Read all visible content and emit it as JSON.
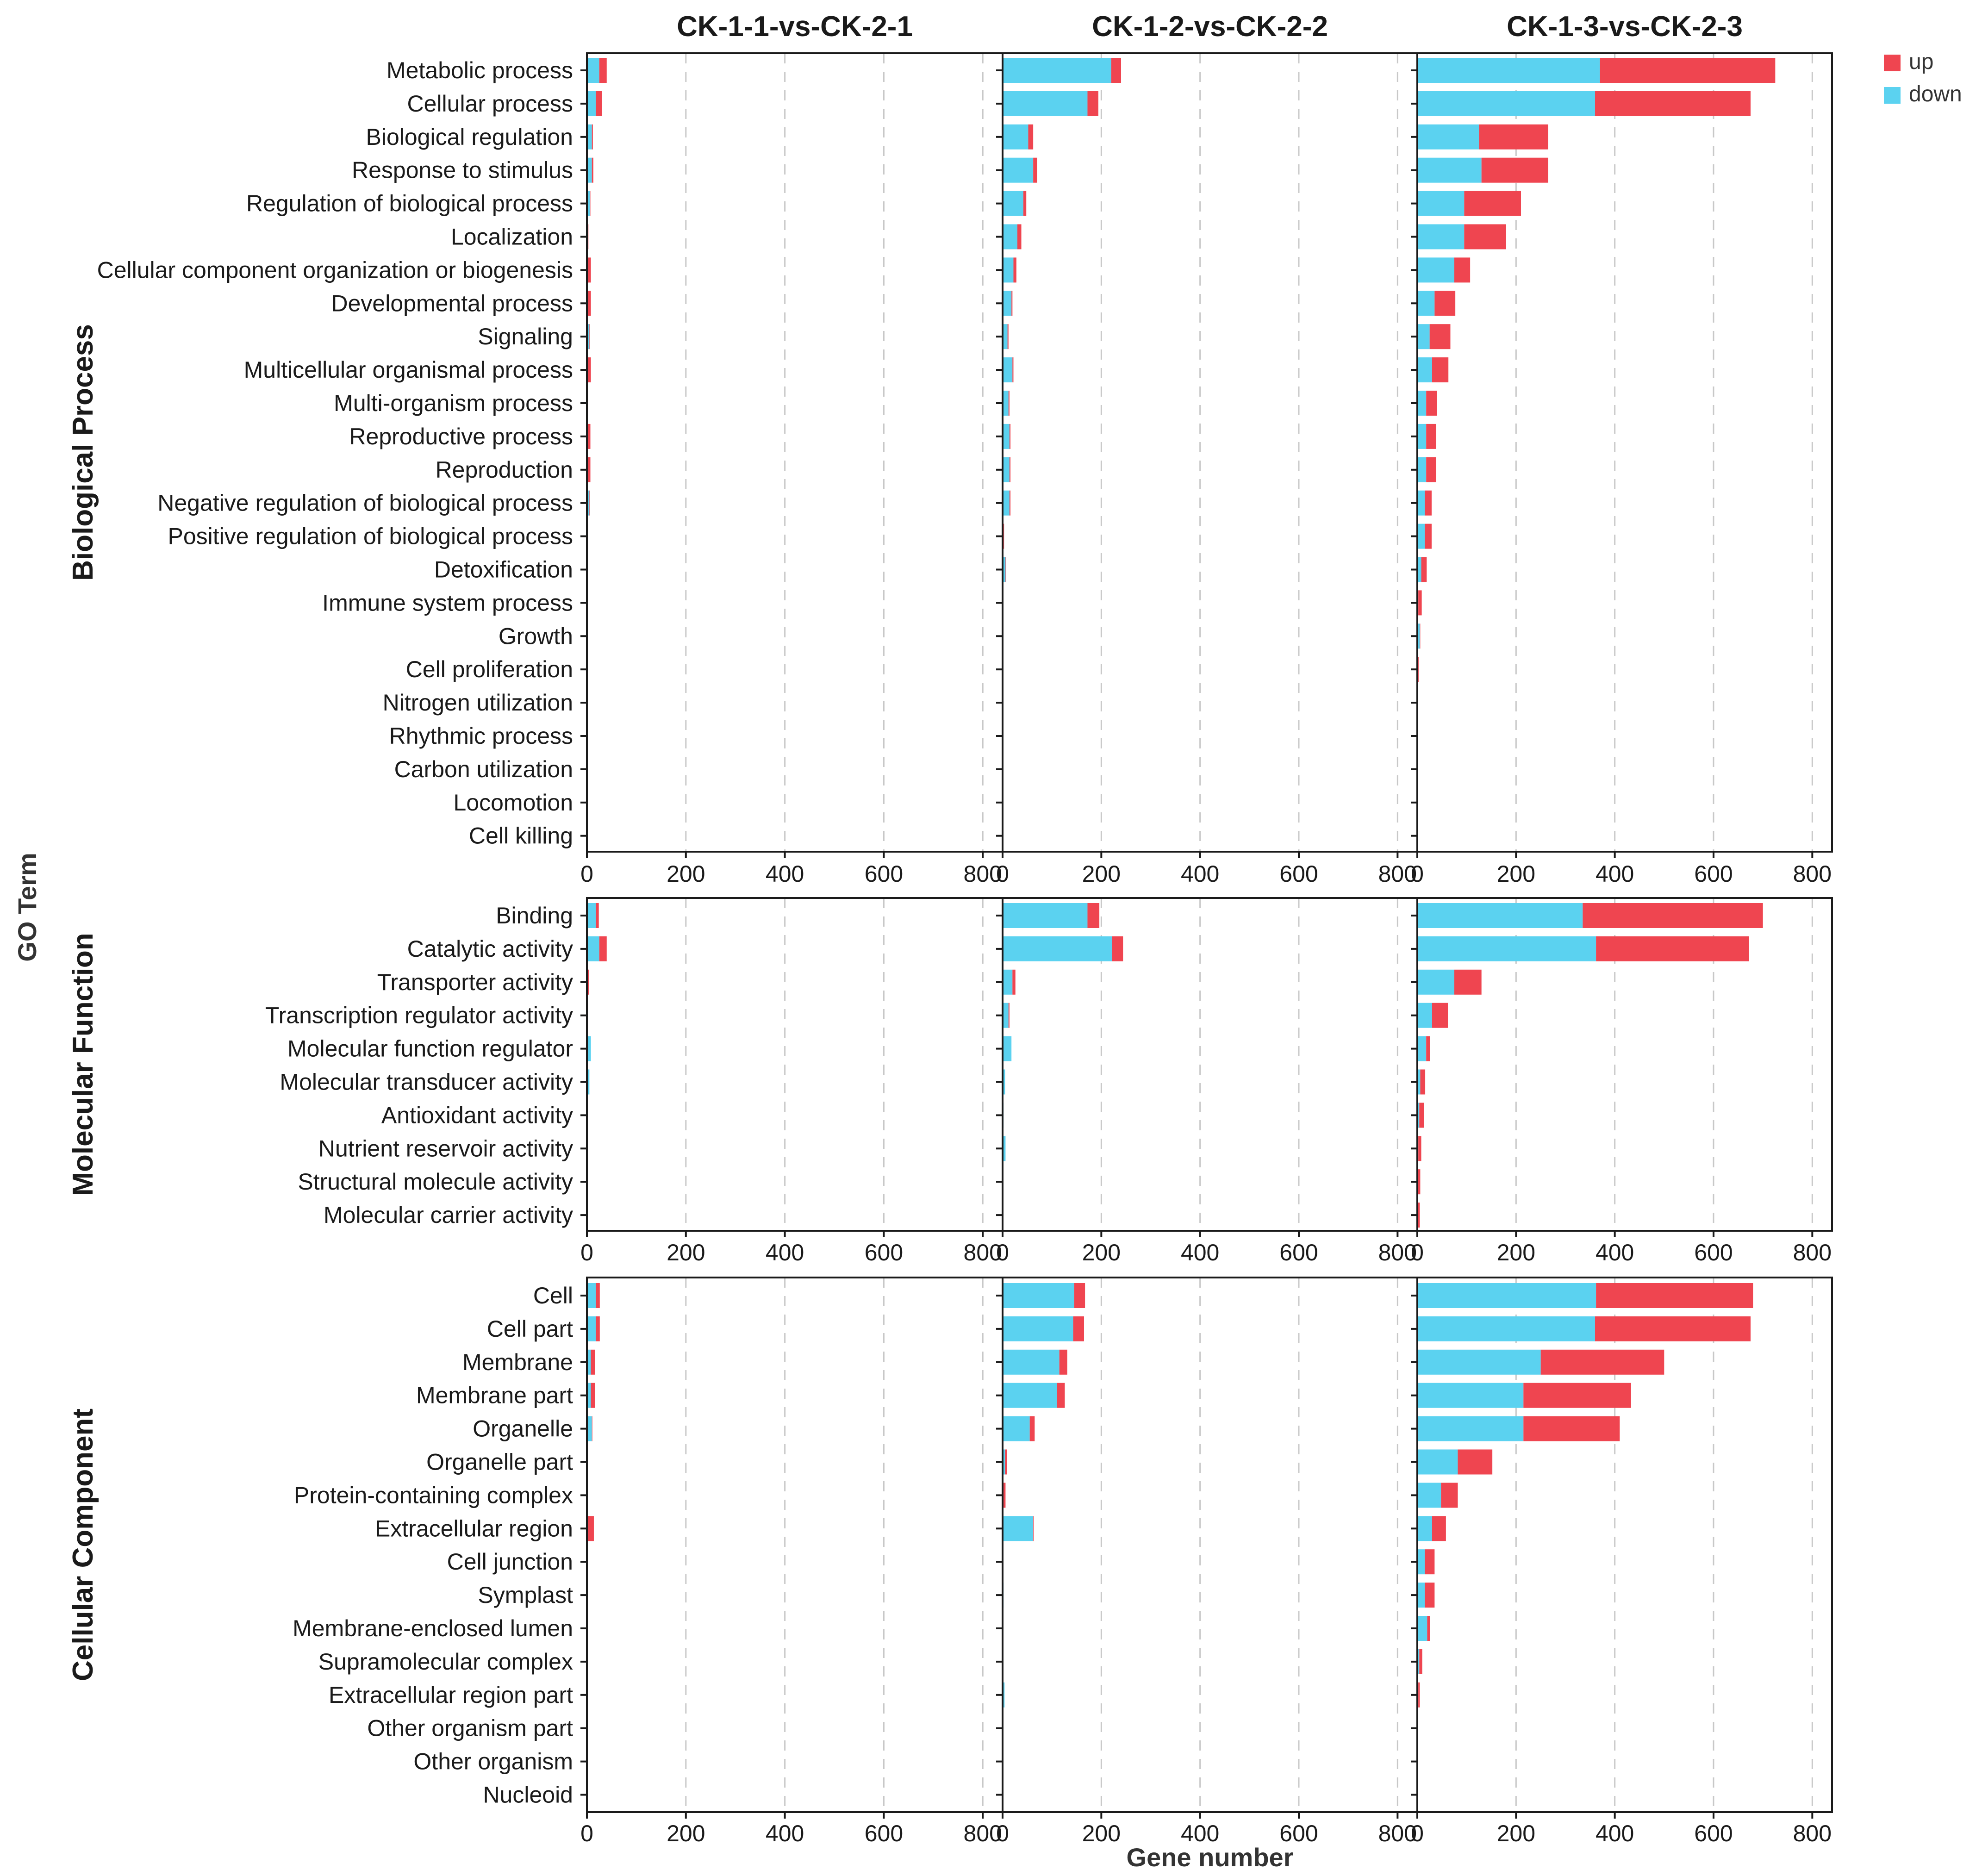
{
  "chart_data": {
    "type": "bar",
    "stacked": true,
    "orientation": "horizontal",
    "xlabel": "Gene number",
    "ylabel": "GO Term",
    "xlim": [
      0,
      840
    ],
    "xticks": [
      0,
      200,
      400,
      600,
      800
    ],
    "grid": "vertical dashed",
    "legend": {
      "position": "top-right",
      "entries": [
        {
          "name": "up",
          "color": "#ef4550"
        },
        {
          "name": "down",
          "color": "#5bd2f0"
        }
      ]
    },
    "colors": {
      "up": "#ef4550",
      "down": "#5bd2f0"
    },
    "panels": [
      "CK-1-1-vs-CK-2-1",
      "CK-1-2-vs-CK-2-2",
      "CK-1-3-vs-CK-2-3"
    ],
    "groups": [
      {
        "name": "Biological Process",
        "categories": [
          "Metabolic process",
          "Cellular process",
          "Biological regulation",
          "Response to stimulus",
          "Regulation of biological process",
          "Localization",
          "Cellular component organization or biogenesis",
          "Developmental process",
          "Signaling",
          "Multicellular organismal process",
          "Multi-organism process",
          "Reproductive process",
          "Reproduction",
          "Negative regulation of biological process",
          "Positive regulation of biological process",
          "Detoxification",
          "Immune system process",
          "Growth",
          "Cell proliferation",
          "Nitrogen utilization",
          "Rhythmic process",
          "Carbon utilization",
          "Locomotion",
          "Cell killing"
        ],
        "series": [
          {
            "panel": "CK-1-1-vs-CK-2-1",
            "down": [
              25,
              18,
              10,
              10,
              6,
              2,
              2,
              2,
              5,
              2,
              1,
              2,
              2,
              5,
              1,
              0,
              0,
              0,
              0,
              0,
              0,
              0,
              0,
              0
            ],
            "up": [
              15,
              12,
              2,
              3,
              1,
              1,
              6,
              6,
              1,
              6,
              1,
              5,
              5,
              1,
              1,
              0,
              0,
              0,
              0,
              0,
              0,
              0,
              0,
              0
            ]
          },
          {
            "panel": "CK-1-2-vs-CK-2-2",
            "down": [
              220,
              172,
              52,
              62,
              42,
              30,
              22,
              18,
              10,
              20,
              12,
              14,
              14,
              14,
              2,
              6,
              0,
              0,
              0,
              0,
              0,
              0,
              0,
              0
            ],
            "up": [
              20,
              22,
              10,
              8,
              6,
              8,
              6,
              2,
              2,
              2,
              2,
              2,
              2,
              2,
              1,
              1,
              0,
              0,
              0,
              0,
              0,
              0,
              0,
              0
            ]
          },
          {
            "panel": "CK-1-3-vs-CK-2-3",
            "down": [
              370,
              360,
              125,
              130,
              95,
              95,
              75,
              35,
              25,
              30,
              18,
              18,
              18,
              15,
              15,
              8,
              2,
              5,
              2,
              0,
              0,
              0,
              0,
              0
            ],
            "up": [
              355,
              315,
              140,
              135,
              115,
              85,
              32,
              42,
              42,
              33,
              22,
              20,
              20,
              14,
              14,
              11,
              7,
              1,
              1,
              0,
              0,
              0,
              0,
              0
            ]
          }
        ]
      },
      {
        "name": "Molecular Function",
        "categories": [
          "Binding",
          "Catalytic activity",
          "Transporter activity",
          "Transcription regulator activity",
          "Molecular function regulator",
          "Molecular transducer activity",
          "Antioxidant activity",
          "Nutrient reservoir activity",
          "Structural molecule activity",
          "Molecular carrier activity"
        ],
        "series": [
          {
            "panel": "CK-1-1-vs-CK-2-1",
            "down": [
              18,
              25,
              2,
              1,
              8,
              5,
              0,
              0,
              0,
              0
            ],
            "up": [
              6,
              15,
              2,
              1,
              0,
              0,
              0,
              0,
              0,
              0
            ]
          },
          {
            "panel": "CK-1-2-vs-CK-2-2",
            "down": [
              172,
              222,
              20,
              12,
              18,
              5,
              2,
              6,
              1,
              1
            ],
            "up": [
              24,
              22,
              6,
              2,
              0,
              0,
              0,
              0,
              0,
              0
            ]
          },
          {
            "panel": "CK-1-3-vs-CK-2-3",
            "down": [
              335,
              362,
              75,
              30,
              18,
              6,
              4,
              2,
              1,
              1
            ],
            "up": [
              365,
              310,
              55,
              32,
              8,
              10,
              10,
              6,
              5,
              4
            ]
          }
        ]
      },
      {
        "name": "Cellular Component",
        "categories": [
          "Cell",
          "Cell part",
          "Membrane",
          "Membrane part",
          "Organelle",
          "Organelle part",
          "Protein-containing complex",
          "Extracellular region",
          "Cell junction",
          "Symplast",
          "Membrane-enclosed lumen",
          "Supramolecular complex",
          "Extracellular region part",
          "Other organism part",
          "Other organism",
          "Nucleoid"
        ],
        "series": [
          {
            "panel": "CK-1-1-vs-CK-2-1",
            "down": [
              18,
              18,
              8,
              8,
              10,
              0,
              0,
              2,
              0,
              0,
              0,
              0,
              0,
              0,
              0,
              0
            ],
            "up": [
              8,
              8,
              8,
              8,
              1,
              0,
              0,
              12,
              0,
              0,
              0,
              0,
              0,
              0,
              0,
              0
            ]
          },
          {
            "panel": "CK-1-2-vs-CK-2-2",
            "down": [
              145,
              143,
              115,
              110,
              55,
              5,
              2,
              62,
              0,
              2,
              0,
              0,
              4,
              0,
              0,
              0
            ],
            "up": [
              22,
              22,
              16,
              16,
              10,
              4,
              4,
              1,
              0,
              0,
              0,
              0,
              0,
              0,
              0,
              0
            ],
            "_note": "bars beyond the visible down band are approximated"
          },
          {
            "panel": "CK-1-3-vs-CK-2-3",
            "down": [
              362,
              360,
              250,
              215,
              215,
              82,
              48,
              30,
              15,
              15,
              20,
              4,
              2,
              0,
              0,
              0
            ],
            "up": [
              318,
              315,
              250,
              218,
              195,
              70,
              34,
              28,
              20,
              20,
              6,
              6,
              3,
              0,
              0,
              0
            ]
          }
        ]
      }
    ]
  }
}
